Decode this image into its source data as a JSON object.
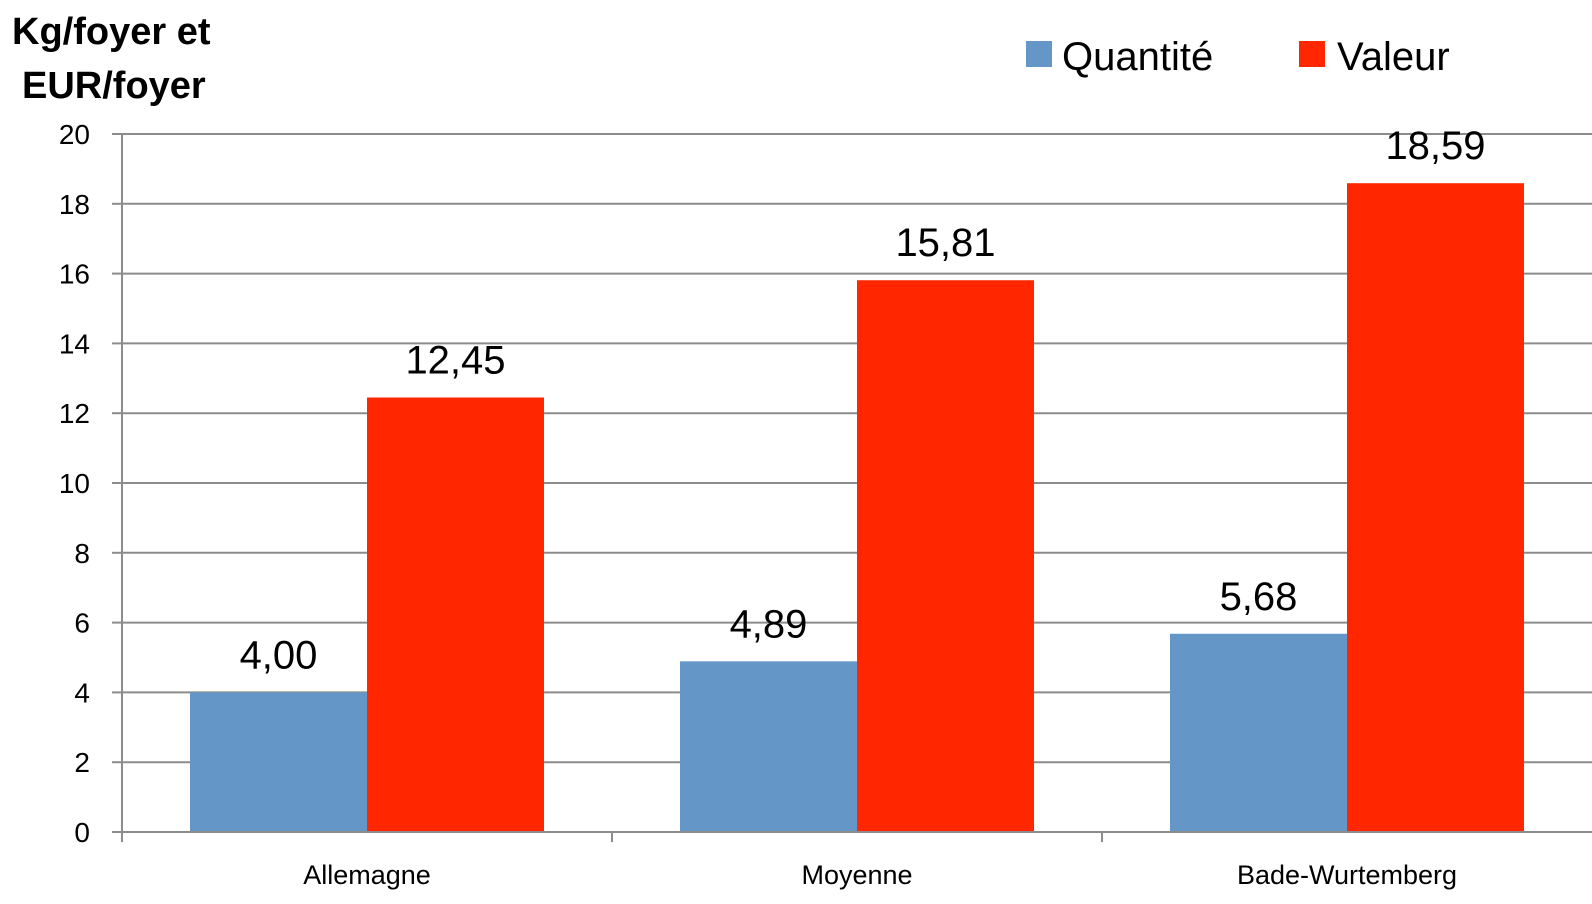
{
  "chart_data": {
    "type": "bar",
    "ylabel_lines": [
      "Kg/foyer et",
      "EUR/foyer"
    ],
    "categories": [
      "Allemagne",
      "Moyenne",
      "Bade-Wurtemberg"
    ],
    "series": [
      {
        "name": "Quantité",
        "color": "#6496c8",
        "values": [
          4.0,
          4.89,
          5.68
        ],
        "labels": [
          "4,00",
          "4,89",
          "5,68"
        ]
      },
      {
        "name": "Valeur",
        "color": "#ff2600",
        "values": [
          12.45,
          15.81,
          18.59
        ],
        "labels": [
          "12,45",
          "15,81",
          "18,59"
        ]
      }
    ],
    "yticks": [
      "0",
      "2",
      "4",
      "6",
      "8",
      "10",
      "12",
      "14",
      "16",
      "18",
      "20"
    ],
    "ylim": [
      0,
      20
    ],
    "grid": true,
    "legend": "top-right"
  }
}
